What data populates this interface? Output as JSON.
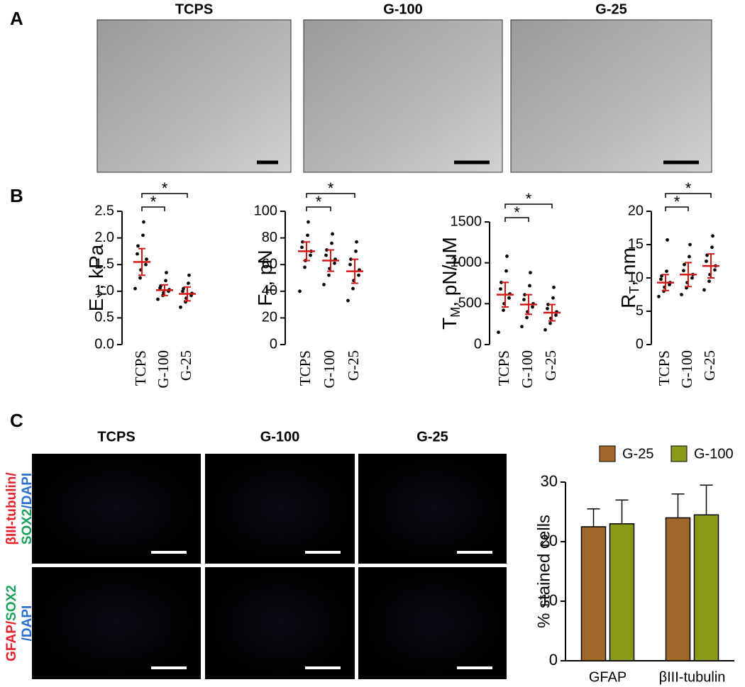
{
  "panel_labels": [
    "A",
    "B",
    "C"
  ],
  "panel_a": {
    "images": [
      "TCPS",
      "G-100",
      "G-25"
    ]
  },
  "panel_c": {
    "images": [
      "TCPS",
      "G-100",
      "G-25"
    ],
    "row_labels": [
      [
        [
          {
            "text": "βIII-tubulin/",
            "color": "#e8202a"
          }
        ],
        [
          {
            "text": "SOX2",
            "color": "#1aa05a"
          },
          {
            "text": "/DAPI",
            "color": "#2a6fd0"
          }
        ]
      ],
      [
        [
          {
            "text": "GFAP/",
            "color": "#e8202a"
          },
          {
            "text": "SOX2",
            "color": "#1aa05a"
          }
        ],
        [
          {
            "text": "/DAPI",
            "color": "#2a6fd0"
          }
        ]
      ]
    ]
  },
  "chart_data": [
    {
      "type": "dot",
      "ylabel": {
        "main": "E",
        "sub": "Y",
        "rest": ",  kPa"
      },
      "categories": [
        "TCPS",
        "G-100",
        "G-25"
      ],
      "points": [
        [
          1.05,
          1.25,
          1.4,
          1.5,
          1.6,
          1.7,
          1.85,
          2.05,
          2.3
        ],
        [
          0.85,
          0.92,
          0.97,
          1.0,
          1.03,
          1.06,
          1.1,
          1.2,
          1.35
        ],
        [
          0.7,
          0.8,
          0.87,
          0.92,
          0.96,
          1.0,
          1.05,
          1.15,
          1.3
        ]
      ],
      "means": [
        1.55,
        1.02,
        0.95
      ],
      "sds": [
        0.25,
        0.1,
        0.13
      ],
      "ylim": [
        0,
        2.5
      ],
      "yticks": [
        {
          "value": 0,
          "label": "0.0"
        },
        0.5,
        {
          "value": 1,
          "label": "1.0"
        },
        1.5,
        {
          "value": 2,
          "label": "2.0"
        },
        2.5
      ],
      "annotations": [
        {
          "from": 0,
          "to": 1,
          "label": "*"
        },
        {
          "from": 0,
          "to": 2,
          "label": "*"
        }
      ]
    },
    {
      "type": "dot",
      "ylabel": {
        "main": "F",
        "sub": "T",
        "rest": ", pN"
      },
      "categories": [
        "TCPS",
        "G-100",
        "G-25"
      ],
      "points": [
        [
          40,
          58,
          63,
          67,
          70,
          73,
          77,
          82,
          92
        ],
        [
          45,
          52,
          57,
          61,
          64,
          67,
          71,
          76,
          83
        ],
        [
          33,
          42,
          48,
          52,
          56,
          60,
          64,
          70,
          77
        ]
      ],
      "means": [
        70,
        63,
        55
      ],
      "sds": [
        7,
        8,
        9
      ],
      "ylim": [
        0,
        100
      ],
      "yticks": [
        0,
        20,
        40,
        60,
        80,
        100
      ],
      "annotations": [
        {
          "from": 0,
          "to": 1,
          "label": "*"
        },
        {
          "from": 0,
          "to": 2,
          "label": "*"
        }
      ]
    },
    {
      "type": "dot",
      "ylabel": {
        "main": "T",
        "sub": "M",
        "rest": ", pN/μM"
      },
      "categories": [
        "TCPS",
        "G-100",
        "G-25"
      ],
      "points": [
        [
          150,
          420,
          500,
          570,
          620,
          680,
          760,
          900,
          1080
        ],
        [
          220,
          330,
          400,
          460,
          500,
          550,
          610,
          720,
          880
        ],
        [
          180,
          260,
          320,
          360,
          400,
          440,
          490,
          570,
          700
        ]
      ],
      "means": [
        610,
        490,
        390
      ],
      "sds": [
        150,
        120,
        100
      ],
      "ylim": [
        0,
        1500
      ],
      "yticks": [
        0,
        500,
        1000,
        1500
      ],
      "annotations": [
        {
          "from": 0,
          "to": 1,
          "label": "*"
        },
        {
          "from": 0,
          "to": 2,
          "label": "*"
        }
      ]
    },
    {
      "type": "dot",
      "ylabel": {
        "main": "R",
        "sub": "T",
        "rest": ", nm"
      },
      "categories": [
        "TCPS",
        "G-100",
        "G-25"
      ],
      "points": [
        [
          7.2,
          8,
          8.6,
          9,
          9.3,
          9.8,
          10.3,
          11,
          15.7
        ],
        [
          7.5,
          8.5,
          9.3,
          10,
          10.5,
          11.1,
          12,
          13.2,
          15
        ],
        [
          8.2,
          9.5,
          10.5,
          11.2,
          11.8,
          12.5,
          13.4,
          14.6,
          16.3
        ]
      ],
      "means": [
        9.3,
        10.5,
        11.8
      ],
      "sds": [
        1.2,
        1.8,
        1.8
      ],
      "ylim": [
        0,
        20
      ],
      "yticks": [
        0,
        5,
        10,
        15,
        20
      ],
      "annotations": [
        {
          "from": 0,
          "to": 1,
          "label": "*"
        },
        {
          "from": 0,
          "to": 2,
          "label": "*"
        }
      ]
    },
    {
      "type": "bar",
      "ylabel": "% stained cells",
      "categories": [
        "GFAP",
        "βIII-tubulin"
      ],
      "series": [
        {
          "name": "G-25",
          "color": "#a0692b",
          "values": [
            22.5,
            24
          ],
          "errors": [
            3,
            4
          ]
        },
        {
          "name": "G-100",
          "color": "#8c9a1a",
          "values": [
            23,
            24.5
          ],
          "errors": [
            4,
            5
          ]
        }
      ],
      "ylim": [
        0,
        30
      ],
      "yticks": [
        0,
        10,
        20,
        30
      ],
      "legend": "top"
    }
  ]
}
